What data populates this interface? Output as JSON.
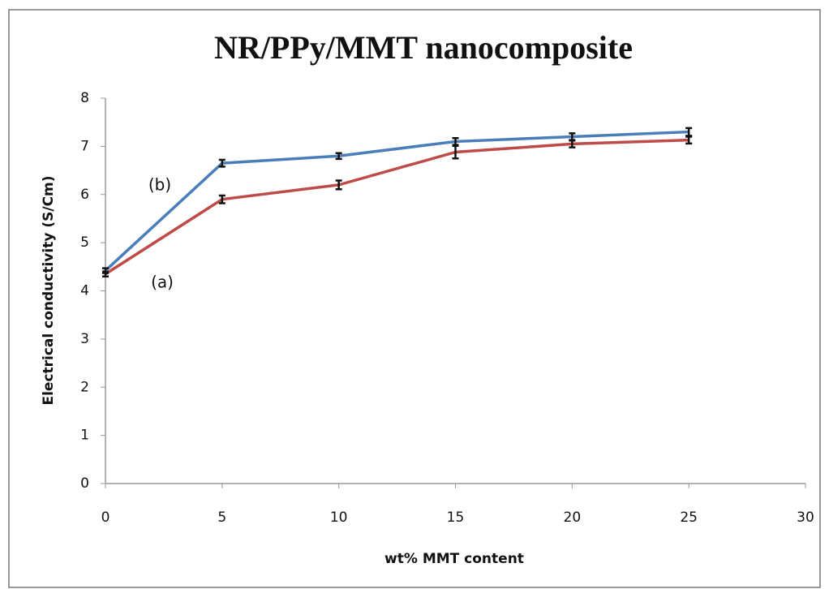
{
  "chart_data": {
    "type": "line",
    "title": "NR/PPy/MMT nanocomposite",
    "xlabel": "wt% MMT content",
    "ylabel": "Electrical conductivity (S/Cm)",
    "x": [
      0,
      5,
      10,
      15,
      20,
      25
    ],
    "series": [
      {
        "name": "(a)",
        "color": "#be4b48",
        "values": [
          4.35,
          5.9,
          6.2,
          6.88,
          7.05,
          7.13
        ],
        "errors": [
          0.05,
          0.08,
          0.09,
          0.13,
          0.07,
          0.07
        ]
      },
      {
        "name": "(b)",
        "color": "#4a7ebb",
        "values": [
          4.42,
          6.65,
          6.8,
          7.1,
          7.2,
          7.3
        ],
        "errors": [
          0.05,
          0.07,
          0.06,
          0.07,
          0.07,
          0.08
        ]
      }
    ],
    "xlim": [
      0,
      30
    ],
    "xticks": [
      0,
      5,
      10,
      15,
      20,
      25,
      30
    ],
    "ylim": [
      0,
      8
    ],
    "yticks": [
      0,
      1,
      2,
      3,
      4,
      5,
      6,
      7,
      8
    ],
    "grid": false
  }
}
